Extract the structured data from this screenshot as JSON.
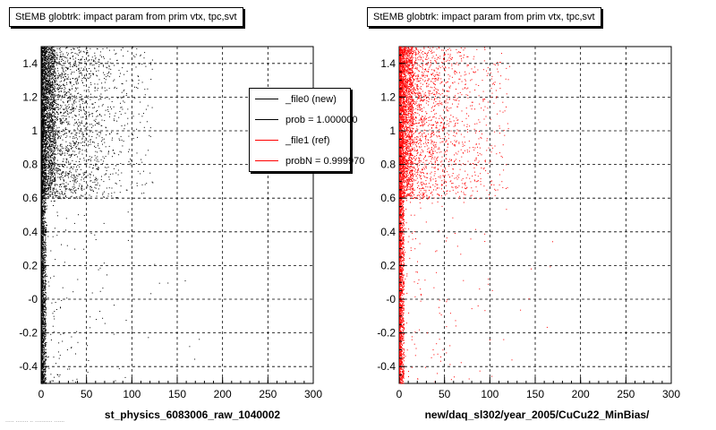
{
  "panels": [
    {
      "title": "StEMB globtrk: impact param from prim vtx, tpc,svt",
      "xlabel": "st_physics_6083006_raw_1040002",
      "color": "#000000"
    },
    {
      "title": "StEMB globtrk: impact param from prim vtx, tpc,svt",
      "xlabel": "new/daq_sl302/year_2005/CuCu22_MinBias/",
      "color": "#ff0000"
    }
  ],
  "legend": {
    "entries": [
      {
        "label": "_file0 (new)",
        "color": "#000000"
      },
      {
        "label": "prob = 1.000000",
        "color": "#000000"
      },
      {
        "label": "_file1 (ref)",
        "color": "#ff0000"
      },
      {
        "label": "probN = 0.999970",
        "color": "#ff0000"
      }
    ]
  },
  "footer": "..... ....... .. .......... ......",
  "chart_data": [
    {
      "type": "scatter",
      "title": "StEMB globtrk: impact param from prim vtx, tpc,svt",
      "xlabel": "st_physics_6083006_raw_1040002",
      "ylabel": "",
      "xlim": [
        0,
        300
      ],
      "ylim": [
        -0.5,
        1.5
      ],
      "xticks": [
        0,
        50,
        100,
        150,
        200,
        250,
        300
      ],
      "yticks": [
        -0.4,
        -0.2,
        0,
        0.2,
        0.4,
        0.6,
        0.8,
        1,
        1.2,
        1.4
      ],
      "ytick_labels": [
        "-0.4",
        "-0.2",
        "-0",
        "0.2",
        "0.4",
        "0.6",
        "0.8",
        "1",
        "1.2",
        "1.4"
      ],
      "grid": true,
      "series": [
        {
          "name": "_file0 (new)",
          "color": "#000000"
        }
      ],
      "density": {
        "core_x_max": 5,
        "upper_band_y": [
          0.6,
          1.5
        ],
        "upper_band_x_max": 180,
        "sparse_below_y": 0.6
      }
    },
    {
      "type": "scatter",
      "title": "StEMB globtrk: impact param from prim vtx, tpc,svt",
      "xlabel": "new/daq_sl302/year_2005/CuCu22_MinBias/",
      "ylabel": "",
      "xlim": [
        0,
        300
      ],
      "ylim": [
        -0.5,
        1.5
      ],
      "xticks": [
        0,
        50,
        100,
        150,
        200,
        250,
        300
      ],
      "yticks": [
        -0.4,
        -0.2,
        0,
        0.2,
        0.4,
        0.6,
        0.8,
        1,
        1.2,
        1.4
      ],
      "ytick_labels": [
        "-0.4",
        "-0.2",
        "-0",
        "0.2",
        "0.4",
        "0.6",
        "0.8",
        "1",
        "1.2",
        "1.4"
      ],
      "grid": true,
      "series": [
        {
          "name": "_file1 (ref)",
          "color": "#ff0000"
        }
      ],
      "density": {
        "core_x_max": 5,
        "upper_band_y": [
          0.6,
          1.5
        ],
        "upper_band_x_max": 180,
        "sparse_below_y": 0.6
      }
    }
  ]
}
